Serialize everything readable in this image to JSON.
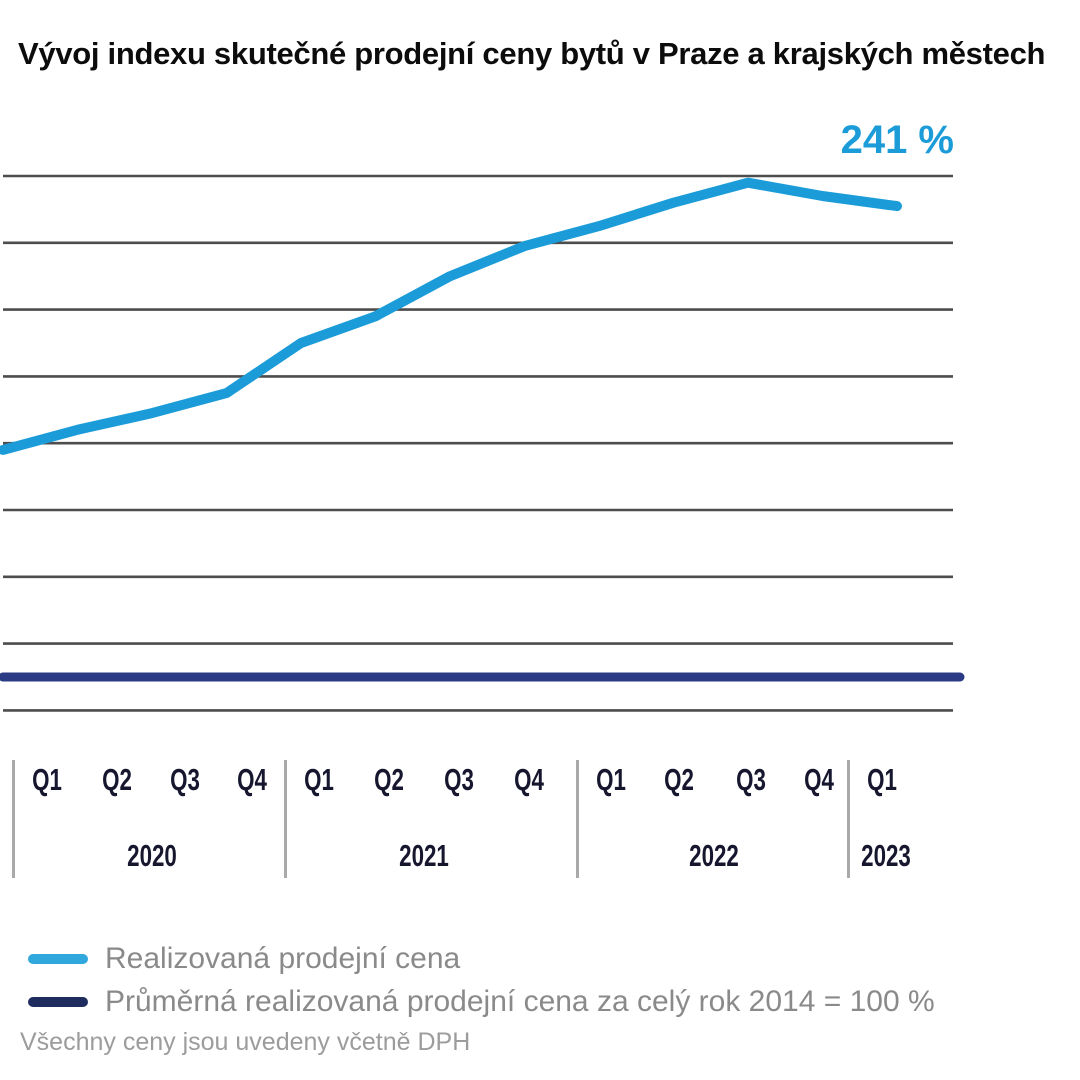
{
  "title": "Vývoj indexu skutečné prodejní ceny bytů v Praze a krajských městech",
  "footnote": "Všechny ceny jsou uvedeny včetně DPH",
  "colors": {
    "primary_blue": "#1b9cd9",
    "baseline_navy": "#2b3a85",
    "legend_blue": "#30a7dd",
    "legend_navy": "#1e2d5e",
    "gridline": "#4d4d4d",
    "axis_text": "#16172e",
    "legend_text": "#8a8a8a",
    "annotation_blue": "#1b9cd9"
  },
  "chart_data": {
    "type": "line",
    "title": "Vývoj indexu skutečné prodejní ceny bytů v Praze a krajských městech",
    "categories": [
      "2020 Q1",
      "2020 Q2",
      "2020 Q3",
      "2020 Q4",
      "2021 Q1",
      "2021 Q2",
      "2021 Q3",
      "2021 Q4",
      "2022 Q1",
      "2022 Q2",
      "2022 Q3",
      "2022 Q4",
      "2023 Q1"
    ],
    "series": [
      {
        "name": "Realizovaná prodejní cena",
        "color": "#1b9cd9",
        "values": [
          168,
          174,
          179,
          185,
          200,
          208,
          220,
          229,
          235,
          242,
          248,
          244,
          241
        ]
      },
      {
        "name": "Průměrná realizovaná prodejní cena za celý rok 2014 = 100 %",
        "color": "#2b3a85",
        "values": [
          100,
          100,
          100,
          100,
          100,
          100,
          100,
          100,
          100,
          100,
          100,
          100,
          100
        ]
      }
    ],
    "x_axis": {
      "year_groups": [
        {
          "year": "2020",
          "quarters": [
            "Q1",
            "Q2",
            "Q3",
            "Q4"
          ]
        },
        {
          "year": "2021",
          "quarters": [
            "Q1",
            "Q2",
            "Q3",
            "Q4"
          ]
        },
        {
          "year": "2022",
          "quarters": [
            "Q1",
            "Q2",
            "Q3",
            "Q4"
          ]
        },
        {
          "year": "2023",
          "quarters": [
            "Q1"
          ]
        }
      ]
    },
    "ylim": [
      85,
      255
    ],
    "gridline_values": [
      90,
      110,
      130,
      150,
      170,
      190,
      210,
      230,
      250
    ],
    "baseline_value": 100,
    "annotation": {
      "text": "241 %",
      "value": 241,
      "at": "2023 Q1"
    },
    "grid": true,
    "y_tick_labels_shown": false,
    "legend_position": "bottom"
  }
}
